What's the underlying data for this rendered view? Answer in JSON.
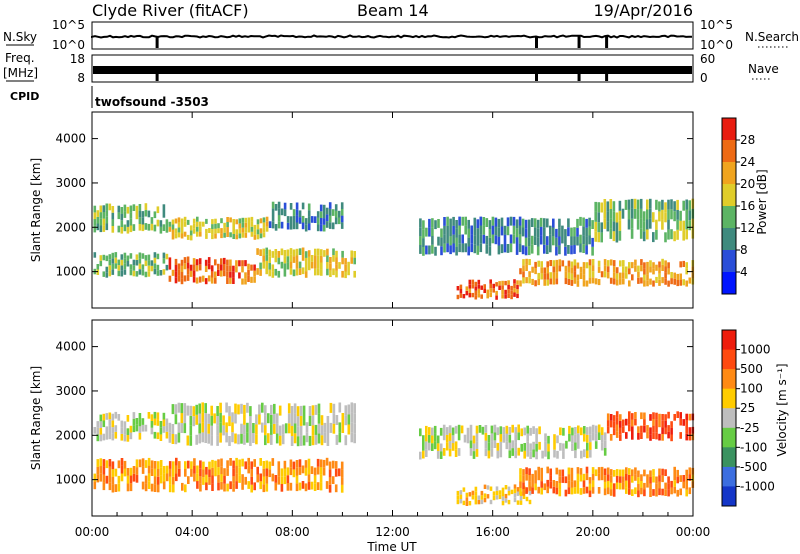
{
  "header": {
    "station": "Clyde River (fitACF)",
    "beam": "Beam 14",
    "date": "19/Apr/2016"
  },
  "param_panels": {
    "nsky_label": "N.Sky",
    "nsky_ticks": [
      "10^5",
      "10^0"
    ],
    "nsearch_label": "N.Search",
    "nsearch_ticks": [
      "10^5",
      "10^0"
    ],
    "freq_label_line1": "Freq.",
    "freq_label_line2": "[MHz]",
    "freq_ticks": [
      "18",
      "8"
    ],
    "nave_label": "Nave",
    "nave_ticks": [
      "60",
      "0"
    ],
    "cpid_label": "CPID",
    "cpid_value": "twofsound -3503",
    "dropouts_hours": [
      2.6,
      17.75,
      19.45,
      20.55
    ]
  },
  "chart_data": [
    {
      "type": "heatmap",
      "name": "power",
      "ylabel": "Slant Range [km]",
      "ylim": [
        180,
        4600
      ],
      "yticks": [
        "1000",
        "2000",
        "3000",
        "4000"
      ],
      "xlim": [
        0,
        24
      ],
      "colorbar_label": "Power [dB]",
      "colorbar_ticks": [
        "4",
        "8",
        "12",
        "16",
        "20",
        "24",
        "28"
      ],
      "colors": [
        "#0015ff",
        "#2a4ed8",
        "#3f8a7e",
        "#5cb464",
        "#e0cd2a",
        "#f0a41e",
        "#ee6a14",
        "#e81c10"
      ],
      "bands": [
        {
          "t0": 0.0,
          "t1": 3.0,
          "r0": 1900,
          "r1": 2500,
          "level": 3
        },
        {
          "t0": 3.0,
          "t1": 7.0,
          "r0": 1750,
          "r1": 2200,
          "level": 4
        },
        {
          "t0": 7.0,
          "t1": 10.0,
          "r0": 1950,
          "r1": 2550,
          "level": 2
        },
        {
          "t0": 0.0,
          "t1": 3.0,
          "r0": 900,
          "r1": 1400,
          "level": 3
        },
        {
          "t0": 3.0,
          "t1": 6.5,
          "r0": 750,
          "r1": 1300,
          "level": 6
        },
        {
          "t0": 6.5,
          "t1": 10.5,
          "r0": 900,
          "r1": 1500,
          "level": 4
        },
        {
          "t0": 14.5,
          "t1": 17.0,
          "r0": 400,
          "r1": 800,
          "level": 6
        },
        {
          "t0": 17.0,
          "t1": 24.0,
          "r0": 700,
          "r1": 1250,
          "level": 5
        },
        {
          "t0": 20.0,
          "t1": 24.0,
          "r0": 1700,
          "r1": 2600,
          "level": 3
        },
        {
          "t0": 13.0,
          "t1": 20.0,
          "r0": 1400,
          "r1": 2200,
          "level": 2
        }
      ]
    },
    {
      "type": "heatmap",
      "name": "velocity",
      "ylabel": "Slant Range [km]",
      "ylim": [
        180,
        4600
      ],
      "yticks": [
        "1000",
        "2000",
        "3000",
        "4000"
      ],
      "xlim": [
        0,
        24
      ],
      "xticks": [
        "00:00",
        "04:00",
        "08:00",
        "12:00",
        "16:00",
        "20:00",
        "00:00"
      ],
      "xlabel": "Time UT",
      "colorbar_label": "Velocity [m s⁻¹]",
      "colorbar_ticks": [
        "1000",
        "500",
        "100",
        "25",
        "-25",
        "-100",
        "-500",
        "-1000"
      ],
      "colors": [
        "#1436c8",
        "#3c6ee0",
        "#3a9260",
        "#66cc44",
        "#bebebe",
        "#ffcc00",
        "#ff8a14",
        "#ff4a10",
        "#ee1c0c"
      ],
      "bands": [
        {
          "t0": 0.0,
          "t1": 3.0,
          "r0": 1900,
          "r1": 2500,
          "level": 4
        },
        {
          "t0": 3.0,
          "t1": 10.5,
          "r0": 1800,
          "r1": 2700,
          "level": 4
        },
        {
          "t0": 0.0,
          "t1": 10.0,
          "r0": 750,
          "r1": 1450,
          "level": 6
        },
        {
          "t0": 14.5,
          "t1": 17.5,
          "r0": 450,
          "r1": 850,
          "level": 5
        },
        {
          "t0": 17.0,
          "t1": 24.0,
          "r0": 650,
          "r1": 1250,
          "level": 6
        },
        {
          "t0": 20.5,
          "t1": 24.0,
          "r0": 1900,
          "r1": 2500,
          "level": 7
        },
        {
          "t0": 13.0,
          "t1": 20.5,
          "r0": 1500,
          "r1": 2200,
          "level": 4
        }
      ]
    }
  ]
}
